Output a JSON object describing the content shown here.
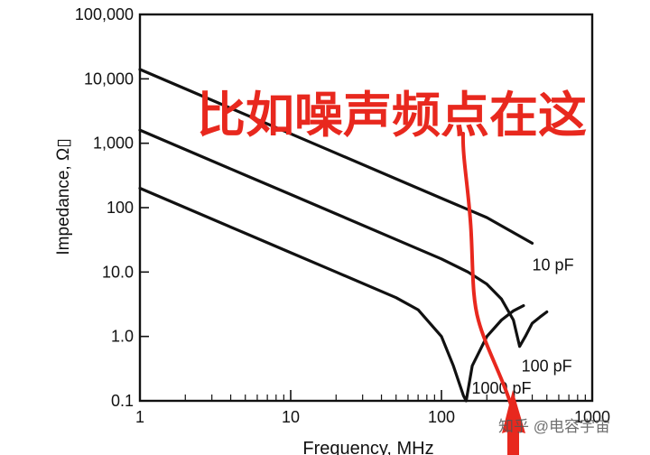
{
  "chart_data": {
    "type": "line",
    "xscale": "log",
    "yscale": "log",
    "xlim": [
      1,
      1000
    ],
    "ylim": [
      0.1,
      100000
    ],
    "xlabel": "Frequency, MHz",
    "ylabel": "Impedance, Ω▯",
    "x_ticks": [
      "1",
      "10",
      "100",
      "1000"
    ],
    "y_ticks": [
      "0.1",
      "1.0",
      "10.0",
      "100",
      "1,000",
      "10,000",
      "100,000"
    ],
    "grid": false,
    "series": [
      {
        "name": "10 pF",
        "x": [
          1,
          2,
          5,
          10,
          20,
          50,
          100,
          200,
          400
        ],
        "y": [
          14000,
          7000,
          2800,
          1400,
          700,
          280,
          140,
          70,
          28
        ]
      },
      {
        "name": "100 pF",
        "x": [
          1,
          2,
          5,
          10,
          20,
          50,
          100,
          150,
          200,
          250,
          300,
          330,
          360,
          400,
          450,
          500
        ],
        "y": [
          1600,
          800,
          320,
          160,
          80,
          32,
          16,
          10,
          6.5,
          3.8,
          1.8,
          0.7,
          1.0,
          1.6,
          2.0,
          2.4
        ]
      },
      {
        "name": "1000 pF",
        "x": [
          1,
          2,
          5,
          10,
          20,
          50,
          70,
          100,
          120,
          140,
          146,
          160,
          200,
          250,
          300,
          350
        ],
        "y": [
          200,
          100,
          40,
          20,
          10,
          4,
          2.6,
          1.0,
          0.35,
          0.12,
          0.1,
          0.35,
          1.0,
          1.8,
          2.5,
          3.0
        ]
      }
    ],
    "annotations": [
      {
        "text": "比如噪声频点在这",
        "color": "#e8281e"
      }
    ]
  },
  "watermark": "知乎 @电容宇宙",
  "colors": {
    "line": "#111111",
    "annotation": "#e8281e"
  }
}
